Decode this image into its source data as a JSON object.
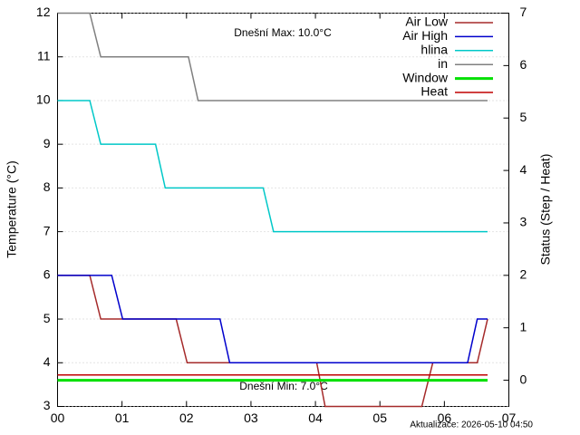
{
  "chart_data": {
    "type": "line",
    "y_label": "Temperature (°C)",
    "y2_label": "Status (Step / Heat)",
    "annotations": [
      {
        "text": "Dnešní Max: 10.0°C",
        "color": "#ff0000"
      },
      {
        "text": "Dnešní Min: 7.0°C",
        "color": "#0000cc"
      },
      {
        "text": "Aktualizace: 2026-05-10 04:50",
        "color": "#bbbbbb"
      }
    ],
    "xlim": [
      0,
      7
    ],
    "xticks": [
      {
        "value": 0,
        "label": "00"
      },
      {
        "value": 1,
        "label": "01"
      },
      {
        "value": 2,
        "label": "02"
      },
      {
        "value": 3,
        "label": "03"
      },
      {
        "value": 4,
        "label": "04"
      },
      {
        "value": 5,
        "label": "05"
      },
      {
        "value": 6,
        "label": "06"
      },
      {
        "value": 7,
        "label": "07"
      }
    ],
    "ylim": [
      3,
      12
    ],
    "yticks": [
      3,
      4,
      5,
      6,
      7,
      8,
      9,
      10,
      11,
      12
    ],
    "y2lim": [
      -0.5,
      7
    ],
    "y2ticks": [
      0,
      1,
      2,
      3,
      4,
      5,
      6,
      7
    ],
    "grid": true,
    "legend": "top-right",
    "series": [
      {
        "name": "Air Low",
        "color": "#a52a2a",
        "x": [
          0,
          0.5,
          0.67,
          1.84,
          2.01,
          4.02,
          4.15,
          5.65,
          5.82,
          6.51,
          6.67
        ],
        "values": [
          6,
          6,
          5,
          5,
          4,
          4,
          3,
          3,
          4,
          4,
          5
        ]
      },
      {
        "name": "Air High",
        "color": "#0000cc",
        "x": [
          0,
          0.84,
          1.01,
          2.52,
          2.67,
          6.36,
          6.51,
          6.67
        ],
        "values": [
          6,
          6,
          5,
          5,
          4,
          4,
          5,
          5
        ]
      },
      {
        "name": "hlina",
        "color": "#00c8c8",
        "x": [
          0,
          0.5,
          0.67,
          1.52,
          1.67,
          3.19,
          3.35,
          6.67
        ],
        "values": [
          10,
          10,
          9,
          9,
          8,
          8,
          7,
          7
        ]
      },
      {
        "name": "in",
        "color": "#808080",
        "x": [
          0,
          0.5,
          0.67,
          2.03,
          2.18,
          6.67
        ],
        "values": [
          12,
          12,
          11,
          11,
          10,
          10
        ]
      },
      {
        "name": "Window",
        "color": "#00e000",
        "axis": "y2",
        "x": [
          0,
          6.67
        ],
        "values": [
          0,
          0
        ]
      },
      {
        "name": "Heat",
        "color": "#c00000",
        "axis": "y2",
        "x": [
          0,
          6.67
        ],
        "values": [
          0.1,
          0.1
        ]
      }
    ]
  }
}
